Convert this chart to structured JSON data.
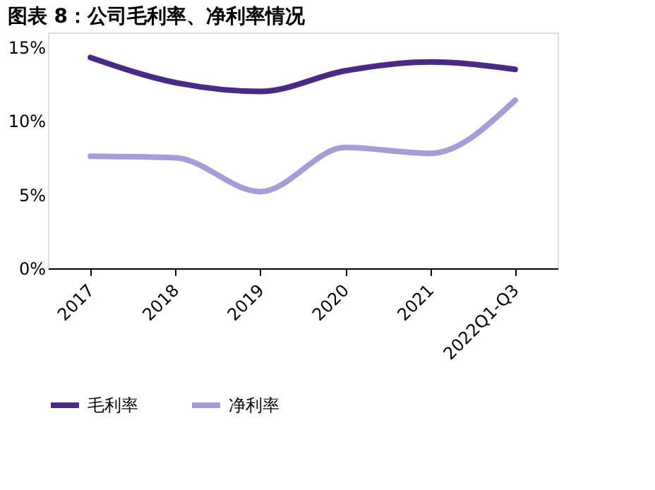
{
  "chart_data": {
    "type": "line",
    "title": "图表 8：公司毛利率、净利率情况",
    "categories": [
      "2017",
      "2018",
      "2019",
      "2020",
      "2021",
      "2022Q1-Q3"
    ],
    "series": [
      {
        "name": "毛利率",
        "color": "#4b2a84",
        "values": [
          14.3,
          12.6,
          12.0,
          13.4,
          14.0,
          13.5
        ]
      },
      {
        "name": "净利率",
        "color": "#a99bd6",
        "values": [
          7.6,
          7.5,
          5.2,
          8.2,
          7.8,
          11.4
        ]
      }
    ],
    "ylim": [
      0,
      16
    ],
    "yticks": [
      {
        "value": 0,
        "label": "0%"
      },
      {
        "value": 5,
        "label": "5%"
      },
      {
        "value": 10,
        "label": "10%"
      },
      {
        "value": 15,
        "label": "15%"
      }
    ],
    "grid": false,
    "legend": "bottom",
    "marker": "none",
    "line_style": "solid"
  }
}
